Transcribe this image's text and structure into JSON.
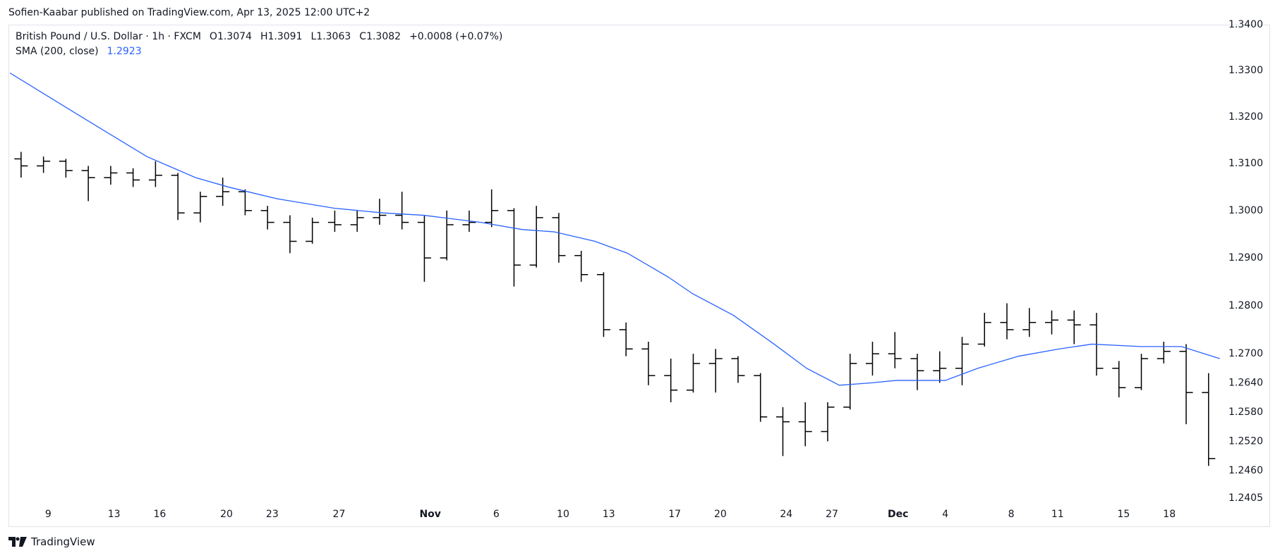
{
  "header": {
    "attribution": "Sofien-Kaabar published on TradingView.com, Apr 13, 2025 12:00 UTC+2"
  },
  "chart_data": {
    "type": "ohlc",
    "symbol": "British Pound / U.S. Dollar · 1h · FXCM",
    "ohlc_legend": [
      {
        "label": "O",
        "value": 1.3074
      },
      {
        "label": "H",
        "value": 1.3091
      },
      {
        "label": "L",
        "value": 1.3063
      },
      {
        "label": "C",
        "value": 1.3082
      }
    ],
    "change": "+0.0008 (+0.07%)",
    "color": "#000000",
    "open": [
      1.311,
      1.3095,
      1.3105,
      1.3085,
      1.307,
      1.308,
      1.3065,
      1.3075,
      1.2995,
      1.303,
      1.304,
      1.3,
      1.2975,
      1.2935,
      1.2975,
      1.297,
      1.2985,
      1.299,
      1.2975,
      1.29,
      1.297,
      1.2975,
      1.3,
      1.2885,
      1.2985,
      1.2905,
      1.2865,
      1.275,
      1.271,
      1.2655,
      1.2625,
      1.268,
      1.269,
      1.2655,
      1.257,
      1.256,
      1.254,
      1.259,
      1.268,
      1.27,
      1.269,
      1.2665,
      1.267,
      1.272,
      1.2765,
      1.275,
      1.2765,
      1.277,
      1.276,
      1.267,
      1.263,
      1.269,
      1.2705,
      1.262
    ],
    "high": [
      1.3125,
      1.3115,
      1.311,
      1.3095,
      1.3095,
      1.309,
      1.3105,
      1.308,
      1.304,
      1.307,
      1.3045,
      1.301,
      1.299,
      1.2985,
      1.3,
      1.3,
      1.3025,
      1.304,
      1.299,
      1.3,
      1.3,
      1.3045,
      1.3005,
      1.301,
      1.2995,
      1.2915,
      1.287,
      1.2765,
      1.2725,
      1.269,
      1.27,
      1.271,
      1.2695,
      1.266,
      1.259,
      1.26,
      1.26,
      1.27,
      1.2725,
      1.2745,
      1.27,
      1.2705,
      1.2735,
      1.2785,
      1.2805,
      1.2795,
      1.279,
      1.279,
      1.2785,
      1.2685,
      1.27,
      1.2725,
      1.272,
      1.266
    ],
    "low": [
      1.307,
      1.308,
      1.307,
      1.302,
      1.3055,
      1.305,
      1.305,
      1.298,
      1.2975,
      1.301,
      1.299,
      1.296,
      1.291,
      1.293,
      1.2955,
      1.2955,
      1.297,
      1.296,
      1.285,
      1.2895,
      1.2955,
      1.2965,
      1.284,
      1.288,
      1.289,
      1.285,
      1.2735,
      1.2695,
      1.2635,
      1.26,
      1.262,
      1.262,
      1.264,
      1.256,
      1.249,
      1.251,
      1.252,
      1.2585,
      1.2655,
      1.267,
      1.2625,
      1.264,
      1.2635,
      1.2715,
      1.273,
      1.2735,
      1.274,
      1.272,
      1.2655,
      1.261,
      1.2625,
      1.268,
      1.2555,
      1.247
    ],
    "close": [
      1.3095,
      1.3105,
      1.3085,
      1.307,
      1.308,
      1.3065,
      1.3075,
      1.2995,
      1.303,
      1.304,
      1.3,
      1.2975,
      1.2935,
      1.2975,
      1.297,
      1.2985,
      1.299,
      1.2975,
      1.29,
      1.297,
      1.2975,
      1.3,
      1.2885,
      1.2985,
      1.2905,
      1.2865,
      1.275,
      1.271,
      1.2655,
      1.2625,
      1.268,
      1.269,
      1.2655,
      1.257,
      1.256,
      1.254,
      1.259,
      1.268,
      1.27,
      1.269,
      1.2665,
      1.267,
      1.272,
      1.2765,
      1.275,
      1.2765,
      1.277,
      1.276,
      1.267,
      1.263,
      1.269,
      1.2705,
      1.262,
      1.2485
    ],
    "overlays": [
      {
        "name": "SMA (200, close)",
        "last_value": 1.2923,
        "color": "#2962ff",
        "x": [
          0,
          3.2,
          6.11,
          8.29,
          9.75,
          11.93,
          14.47,
          16.65,
          18.47,
          21.02,
          22.84,
          24.29,
          26.11,
          27.56,
          29.38,
          30.47,
          32.29,
          34.11,
          35.56,
          37.02,
          38.47,
          39.56,
          41.75,
          43.2,
          45.02,
          46.84,
          48.29,
          50.47,
          52.29,
          54.0
        ],
        "values": [
          1.3295,
          1.32,
          1.3115,
          1.307,
          1.305,
          1.3025,
          1.3005,
          1.2995,
          1.299,
          1.2975,
          1.296,
          1.2955,
          1.2935,
          1.291,
          1.286,
          1.2825,
          1.278,
          1.272,
          1.267,
          1.2635,
          1.264,
          1.2645,
          1.2645,
          1.267,
          1.2695,
          1.271,
          1.272,
          1.2715,
          1.2715,
          1.269
        ]
      }
    ],
    "log_scale": true,
    "grid": false,
    "ylim": [
      1.2389,
      1.34
    ],
    "yticks": [
      {
        "value": 1.34,
        "label": "1.3400"
      },
      {
        "value": 1.33,
        "label": "1.3300"
      },
      {
        "value": 1.32,
        "label": "1.3200"
      },
      {
        "value": 1.31,
        "label": "1.3100"
      },
      {
        "value": 1.3,
        "label": "1.3000"
      },
      {
        "value": 1.29,
        "label": "1.2900"
      },
      {
        "value": 1.28,
        "label": "1.2800"
      },
      {
        "value": 1.27,
        "label": "1.2700"
      },
      {
        "value": 1.264,
        "label": "1.2640"
      },
      {
        "value": 1.258,
        "label": "1.2580"
      },
      {
        "value": 1.252,
        "label": "1.2520"
      },
      {
        "value": 1.246,
        "label": "1.2460"
      },
      1.2405
    ],
    "xlim": [
      0,
      54.2
    ],
    "xticks": [
      {
        "value": 1.71,
        "label": "9"
      },
      {
        "value": 4.65,
        "label": "13"
      },
      {
        "value": 6.69,
        "label": "16"
      },
      {
        "value": 9.67,
        "label": "20"
      },
      {
        "value": 11.71,
        "label": "23"
      },
      {
        "value": 14.69,
        "label": "27"
      },
      {
        "value": 18.76,
        "label": "Nov"
      },
      {
        "value": 21.71,
        "label": "6"
      },
      {
        "value": 24.69,
        "label": "10"
      },
      {
        "value": 26.73,
        "label": "13"
      },
      {
        "value": 29.67,
        "label": "17"
      },
      {
        "value": 31.71,
        "label": "20"
      },
      {
        "value": 34.65,
        "label": "24"
      },
      {
        "value": 36.69,
        "label": "27"
      },
      {
        "value": 39.64,
        "label": "Dec"
      },
      {
        "value": 41.75,
        "label": "4"
      },
      {
        "value": 44.69,
        "label": "8"
      },
      {
        "value": 46.76,
        "label": "11"
      },
      {
        "value": 49.71,
        "label": "15"
      },
      {
        "value": 51.75,
        "label": "18"
      }
    ]
  },
  "footer": {
    "brand": "TradingView"
  }
}
